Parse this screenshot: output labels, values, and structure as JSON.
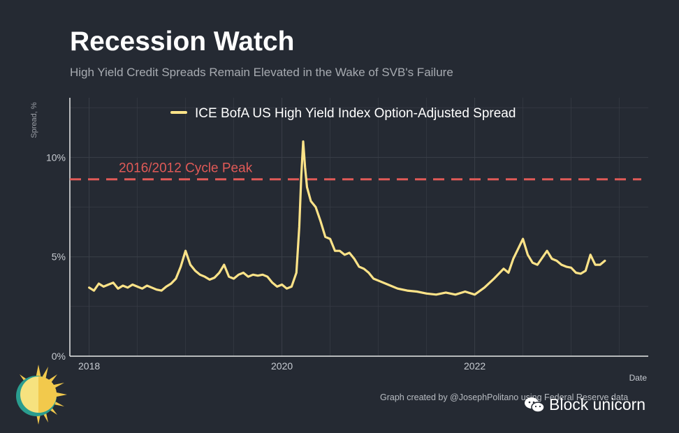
{
  "header": {
    "title": "Recession Watch",
    "subtitle": "High Yield Credit Spreads Remain Elevated in the Wake of SVB's Failure"
  },
  "footer": {
    "credit": "Graph created by @JosephPolitano using Federal Reserve data",
    "watermark": "Block unicorn"
  },
  "colors": {
    "background": "#252a33",
    "series": "#fde388",
    "reference": "#e05a57",
    "grid": "#3a3f48",
    "axis": "#e9e9e9"
  },
  "chart_data": {
    "type": "line",
    "title": "",
    "xlabel": "Date",
    "ylabel": "Spread, %",
    "xlim": [
      2017.8,
      2023.8
    ],
    "ylim": [
      0,
      13
    ],
    "y_ticks": [
      0,
      5,
      10
    ],
    "y_tick_labels": [
      "0%",
      "5%",
      "10%"
    ],
    "x_ticks": [
      2018,
      2020,
      2022
    ],
    "x_tick_labels": [
      "2018",
      "2020",
      "2022"
    ],
    "grid": true,
    "legend": {
      "position": "top-center",
      "entries": [
        "ICE BofA US High Yield Index Option-Adjusted Spread"
      ]
    },
    "reference_lines": [
      {
        "label": "2016/2012 Cycle Peak",
        "value": 8.9,
        "style": "dashed"
      }
    ],
    "series": [
      {
        "name": "ICE BofA US High Yield Index Option-Adjusted Spread",
        "x": [
          2018.0,
          2018.05,
          2018.1,
          2018.15,
          2018.2,
          2018.25,
          2018.3,
          2018.35,
          2018.4,
          2018.45,
          2018.5,
          2018.55,
          2018.6,
          2018.65,
          2018.7,
          2018.75,
          2018.8,
          2018.85,
          2018.9,
          2018.95,
          2019.0,
          2019.05,
          2019.1,
          2019.15,
          2019.2,
          2019.25,
          2019.3,
          2019.35,
          2019.4,
          2019.45,
          2019.5,
          2019.55,
          2019.6,
          2019.65,
          2019.7,
          2019.75,
          2019.8,
          2019.85,
          2019.9,
          2019.95,
          2020.0,
          2020.05,
          2020.1,
          2020.15,
          2020.18,
          2020.2,
          2020.22,
          2020.24,
          2020.26,
          2020.3,
          2020.35,
          2020.4,
          2020.45,
          2020.5,
          2020.55,
          2020.6,
          2020.65,
          2020.7,
          2020.75,
          2020.8,
          2020.85,
          2020.9,
          2020.95,
          2021.0,
          2021.1,
          2021.2,
          2021.3,
          2021.4,
          2021.5,
          2021.6,
          2021.7,
          2021.8,
          2021.9,
          2022.0,
          2022.1,
          2022.2,
          2022.3,
          2022.35,
          2022.4,
          2022.45,
          2022.5,
          2022.55,
          2022.6,
          2022.65,
          2022.7,
          2022.75,
          2022.8,
          2022.85,
          2022.9,
          2022.95,
          2023.0,
          2023.05,
          2023.1,
          2023.15,
          2023.2,
          2023.25,
          2023.3,
          2023.35
        ],
        "y": [
          3.45,
          3.3,
          3.65,
          3.5,
          3.6,
          3.7,
          3.4,
          3.55,
          3.45,
          3.6,
          3.5,
          3.4,
          3.55,
          3.45,
          3.35,
          3.3,
          3.5,
          3.65,
          3.9,
          4.5,
          5.3,
          4.6,
          4.3,
          4.1,
          4.0,
          3.85,
          3.95,
          4.2,
          4.6,
          4.0,
          3.9,
          4.1,
          4.2,
          4.0,
          4.1,
          4.05,
          4.1,
          4.0,
          3.7,
          3.5,
          3.6,
          3.4,
          3.5,
          4.2,
          6.5,
          9.0,
          10.8,
          9.5,
          8.5,
          7.8,
          7.5,
          6.8,
          6.0,
          5.9,
          5.3,
          5.3,
          5.1,
          5.2,
          4.9,
          4.5,
          4.4,
          4.2,
          3.9,
          3.8,
          3.6,
          3.4,
          3.3,
          3.25,
          3.15,
          3.1,
          3.2,
          3.1,
          3.25,
          3.1,
          3.45,
          3.9,
          4.4,
          4.2,
          4.9,
          5.4,
          5.9,
          5.1,
          4.7,
          4.6,
          4.95,
          5.3,
          4.9,
          4.8,
          4.6,
          4.5,
          4.45,
          4.2,
          4.15,
          4.3,
          5.1,
          4.6,
          4.6,
          4.8
        ]
      }
    ]
  }
}
